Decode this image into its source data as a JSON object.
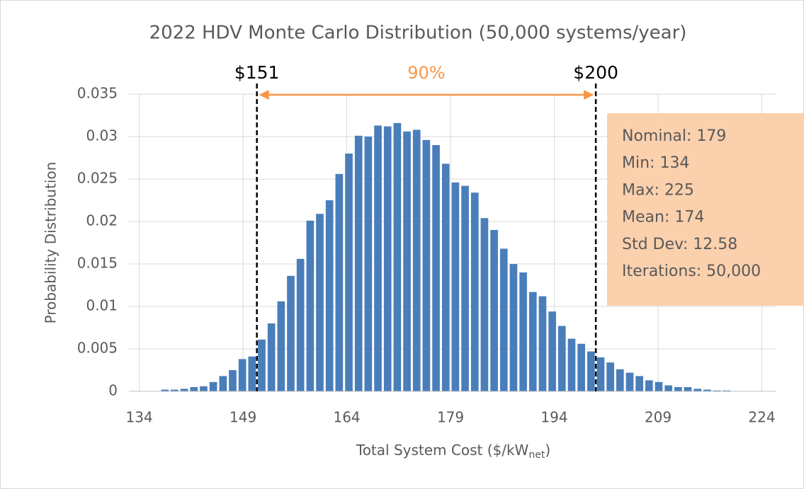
{
  "chart_data": {
    "type": "histogram",
    "title": "2022 HDV Monte Carlo Distribution (50,000 systems/year)",
    "xlabel": "Total System Cost ($/kW",
    "xlabel_sub": "net",
    "xlabel_end": ")",
    "ylabel": "Probability Distribution",
    "bins": [
      137,
      138.4,
      139.8,
      141.2,
      142.6,
      144,
      145.4,
      146.8,
      148.2,
      149.6,
      151,
      152.4,
      153.8,
      155.2,
      156.6,
      158,
      159.4,
      160.8,
      162.2,
      163.6,
      165,
      166.4,
      167.8,
      169.2,
      170.6,
      172,
      173.4,
      174.8,
      176.2,
      177.6,
      179,
      180.4,
      181.8,
      183.2,
      184.6,
      186,
      187.4,
      188.8,
      190.2,
      191.6,
      193,
      194.4,
      195.8,
      197.2,
      198.6,
      200,
      201.4,
      202.8,
      204.2,
      205.6,
      207,
      208.4,
      209.8,
      211.2,
      212.6,
      214,
      215.4,
      216.8,
      218.2,
      219.6
    ],
    "counts": [
      0.0002,
      0.0002,
      0.0003,
      0.0005,
      0.0006,
      0.0011,
      0.0018,
      0.0025,
      0.0038,
      0.0041,
      0.0061,
      0.008,
      0.0106,
      0.0136,
      0.0156,
      0.0201,
      0.0209,
      0.0225,
      0.0256,
      0.028,
      0.0301,
      0.03,
      0.0313,
      0.0312,
      0.0316,
      0.0306,
      0.0308,
      0.0296,
      0.029,
      0.0268,
      0.0246,
      0.0242,
      0.0234,
      0.0204,
      0.019,
      0.0168,
      0.015,
      0.014,
      0.0117,
      0.0112,
      0.0094,
      0.0077,
      0.0062,
      0.0056,
      0.0047,
      0.004,
      0.0034,
      0.0026,
      0.0022,
      0.0018,
      0.0013,
      0.0011,
      0.0007,
      0.0005,
      0.0005,
      0.0003,
      0.0002,
      0.0001,
      0.0001
    ],
    "color": "#4a7ebb",
    "xlim": [
      132.5,
      226
    ],
    "xticks": [
      134,
      149,
      164,
      179,
      194,
      209,
      224
    ],
    "ylim": [
      0,
      0.035
    ],
    "yticks": [
      0,
      0.005,
      0.01,
      0.015,
      0.02,
      0.025,
      0.03,
      0.035
    ],
    "grid": true,
    "bounds": [
      {
        "value": 151,
        "label": "$151"
      },
      {
        "value": 200,
        "label": "$200"
      }
    ],
    "span_label": "90%",
    "span_color": "#f79646",
    "stats_color": "#fbd0ad",
    "stats": [
      "Nominal: 179",
      "Min: 134",
      "Max: 225",
      "Mean: 174",
      "Std Dev: 12.58",
      "Iterations: 50,000"
    ]
  }
}
